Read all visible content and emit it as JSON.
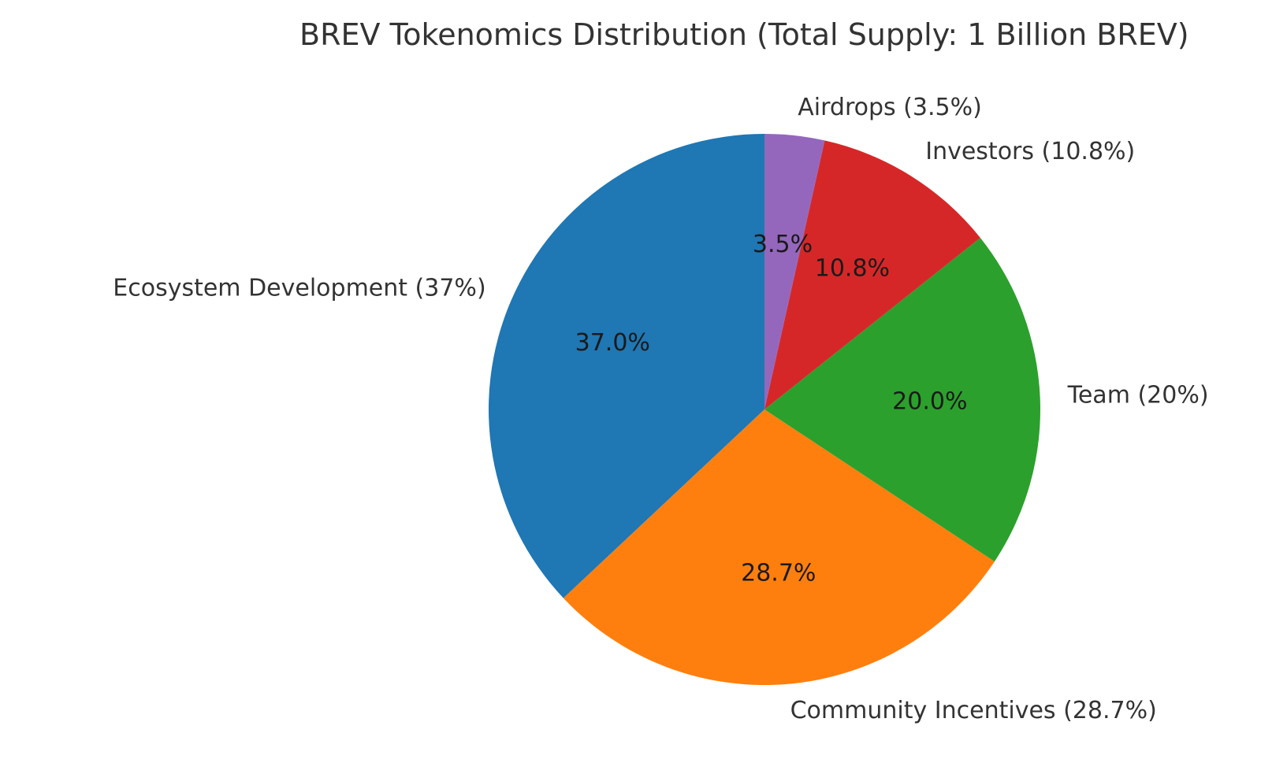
{
  "chart_data": {
    "type": "pie",
    "title": "BREV Tokenomics Distribution (Total Supply: 1 Billion BREV)",
    "start_angle_deg": 90,
    "direction": "counterclockwise",
    "slices": [
      {
        "label": "Ecosystem Development (37%)",
        "value": 37.0,
        "pct_label": "37.0%",
        "color": "#1f77b4"
      },
      {
        "label": "Community Incentives (28.7%)",
        "value": 28.7,
        "pct_label": "28.7%",
        "color": "#ff7f0e"
      },
      {
        "label": "Team (20%)",
        "value": 20.0,
        "pct_label": "20.0%",
        "color": "#2ca02c"
      },
      {
        "label": "Investors (10.8%)",
        "value": 10.8,
        "pct_label": "10.8%",
        "color": "#d62728"
      },
      {
        "label": "Airdrops (3.5%)",
        "value": 3.5,
        "pct_label": "3.5%",
        "color": "#9467bd"
      }
    ]
  }
}
